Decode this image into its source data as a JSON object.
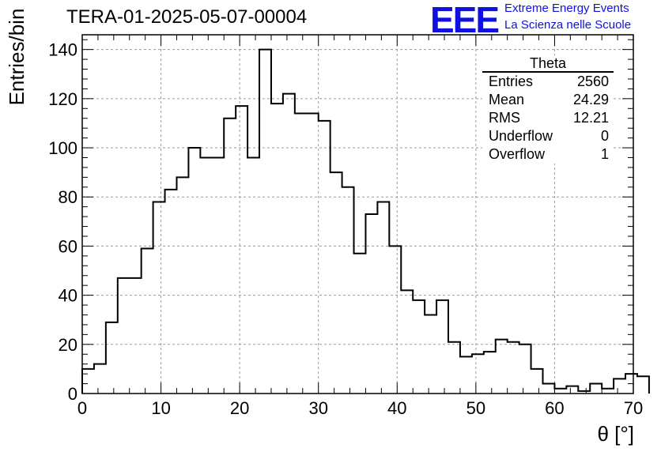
{
  "title": "TERA-01-2025-05-07-00004",
  "logo": {
    "text": "EEE",
    "line1": "Extreme Energy Events",
    "line2": "La Scienza nelle Scuole",
    "color": "#1010e0"
  },
  "stats": {
    "title": "Theta",
    "rows": [
      {
        "label": "Entries",
        "value": "2560"
      },
      {
        "label": "Mean",
        "value": "24.29"
      },
      {
        "label": "RMS",
        "value": "12.21"
      },
      {
        "label": "Underflow",
        "value": "0"
      },
      {
        "label": "Overflow",
        "value": "1"
      }
    ]
  },
  "chart_data": {
    "type": "bar",
    "histogram": true,
    "title": "TERA-01-2025-05-07-00004",
    "xlabel": "θ [°]",
    "ylabel": "Entries/bin",
    "xlim": [
      0,
      70
    ],
    "ylim": [
      0,
      146
    ],
    "xticks": [
      0,
      10,
      20,
      30,
      40,
      50,
      60,
      70
    ],
    "yticks": [
      0,
      20,
      40,
      60,
      80,
      100,
      120,
      140
    ],
    "grid": true,
    "bin_width": 1.5,
    "bin_edges_start": 0,
    "series": [
      {
        "values": [
          10,
          12,
          29,
          47,
          47,
          59,
          78,
          83,
          88,
          100,
          96,
          96,
          112,
          117,
          96,
          140,
          118,
          122,
          114,
          114,
          111,
          90,
          84,
          57,
          73,
          78,
          60,
          42,
          38,
          32,
          38,
          21,
          15,
          16,
          17,
          22,
          21,
          20,
          10,
          4,
          2,
          3,
          1,
          4,
          2,
          6,
          8,
          7
        ]
      }
    ]
  }
}
